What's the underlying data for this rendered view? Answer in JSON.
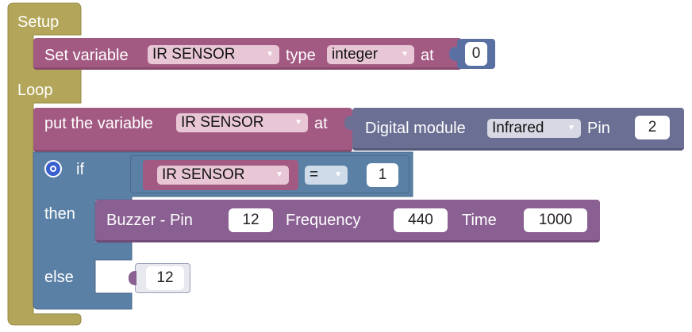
{
  "colors": {
    "setup_frame": "#b3a65a",
    "variables": "#a35a82",
    "variables_edge": "#8a4a6c",
    "math": "#5a70a3",
    "logic": "#5b80a5",
    "sensor": "#6b6f94",
    "sound": "#8a5f92",
    "dropdown_bg": "#e8c6d6",
    "dropdown_sensor_bg": "#d7d8e3"
  },
  "setup": {
    "label": "Setup",
    "set_variable": {
      "label": "Set variable",
      "variable": "IR SENSOR",
      "type_label": "type",
      "type_value": "integer",
      "at_label": "at",
      "value": "0"
    }
  },
  "loop": {
    "label": "Loop",
    "put_variable": {
      "label": "put the variable",
      "variable": "IR SENSOR",
      "at_label": "at",
      "digital_module": {
        "label": "Digital module",
        "module": "Infrared",
        "pin_label": "Pin",
        "pin": "2"
      }
    },
    "if_block": {
      "if_label": "if",
      "then_label": "then",
      "else_label": "else",
      "condition": {
        "variable": "IR SENSOR",
        "operator": "=",
        "value": "1"
      },
      "buzzer": {
        "label": "Buzzer - Pin",
        "pin": "12",
        "frequency_label": "Frequency",
        "frequency": "440",
        "time_label": "Time",
        "time": "1000"
      },
      "else_value": "12"
    }
  }
}
